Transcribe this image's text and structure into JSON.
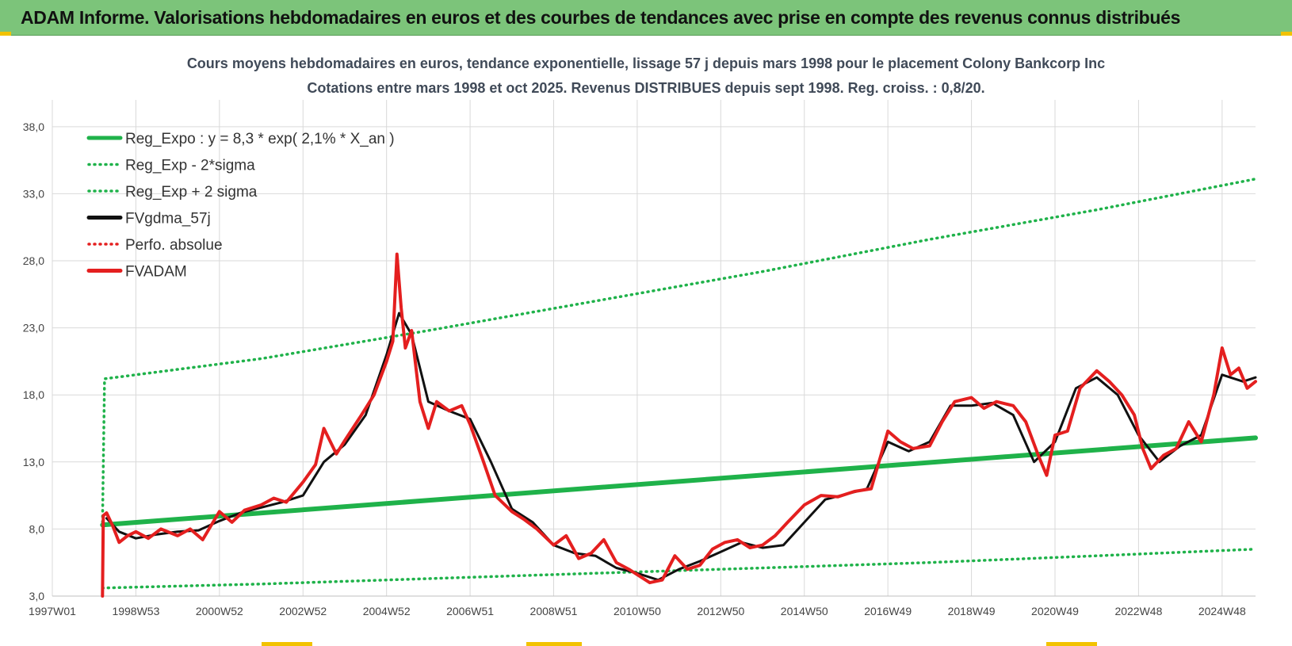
{
  "banner": {
    "title": "ADAM Informe. Valorisations hebdomadaires en euros et des courbes de tendances avec prise en compte des revenus connus distribués"
  },
  "chart_data": {
    "type": "line",
    "title": "Cours moyens hebdomadaires en euros, tendance exponentielle, lissage 57 j depuis mars 1998 pour le placement Colony Bankcorp Inc",
    "subtitle": "Cotations entre mars 1998 et oct 2025. Revenus DISTRIBUES depuis sept 1998. Reg. croiss. : 0,8/20.",
    "xlabel": "",
    "ylabel": "",
    "ylim": [
      3,
      40
    ],
    "yticks": [
      "3,0",
      "8,0",
      "13,0",
      "18,0",
      "23,0",
      "28,0",
      "33,0",
      "38,0"
    ],
    "ytick_values": [
      3,
      8,
      13,
      18,
      23,
      28,
      33,
      38
    ],
    "xlim": [
      1997.0,
      2025.8
    ],
    "xticks": [
      "1997W01",
      "1998W53",
      "2000W52",
      "2002W52",
      "2004W52",
      "2006W51",
      "2008W51",
      "2010W50",
      "2012W50",
      "2014W50",
      "2016W49",
      "2018W49",
      "2020W49",
      "2022W48",
      "2024W48"
    ],
    "xtick_values": [
      1997.0,
      1999.0,
      2001.0,
      2003.0,
      2005.0,
      2007.0,
      2009.0,
      2011.0,
      2013.0,
      2015.0,
      2017.0,
      2019.0,
      2021.0,
      2023.0,
      2025.0
    ],
    "legend_position": "top-left",
    "series": [
      {
        "name": "Reg_Expo : y = 8,3 * exp( 2,1% *  X_an )",
        "color": "#1fb24a",
        "style": "solid",
        "x": [
          1998.2,
          2025.8
        ],
        "y": [
          8.3,
          14.8
        ]
      },
      {
        "name": "Reg_Exp - 2*sigma",
        "color": "#1fb24a",
        "style": "dotted",
        "x": [
          1998.2,
          2002,
          2006,
          2010,
          2014,
          2018,
          2022,
          2025.8
        ],
        "y": [
          3.6,
          3.9,
          4.3,
          4.7,
          5.1,
          5.5,
          6.0,
          6.5
        ]
      },
      {
        "name": "Reg_Exp + 2 sigma",
        "color": "#1fb24a",
        "style": "dotted",
        "x": [
          1998.2,
          1998.25,
          2002,
          2006,
          2010,
          2014,
          2018,
          2022,
          2025.8
        ],
        "y": [
          8.5,
          19.2,
          20.7,
          22.8,
          25.0,
          27.2,
          29.6,
          31.8,
          34.1
        ]
      },
      {
        "name": "FVgdma_57j",
        "color": "#111111",
        "style": "solid",
        "x": [
          1998.3,
          1998.6,
          1999.0,
          1999.5,
          2000.0,
          2000.5,
          2001.0,
          2001.5,
          2002.0,
          2002.5,
          2003.0,
          2003.5,
          2004.0,
          2004.5,
          2005.0,
          2005.3,
          2005.6,
          2006.0,
          2006.5,
          2007.0,
          2007.5,
          2008.0,
          2008.5,
          2009.0,
          2009.5,
          2010.0,
          2010.5,
          2011.0,
          2011.5,
          2012.0,
          2012.5,
          2013.0,
          2013.5,
          2014.0,
          2014.5,
          2015.0,
          2015.5,
          2016.0,
          2016.5,
          2017.0,
          2017.5,
          2018.0,
          2018.5,
          2019.0,
          2019.5,
          2020.0,
          2020.5,
          2021.0,
          2021.5,
          2022.0,
          2022.5,
          2023.0,
          2023.5,
          2024.0,
          2024.5,
          2025.0,
          2025.5,
          2025.8
        ],
        "y": [
          8.8,
          7.8,
          7.3,
          7.6,
          7.8,
          7.9,
          8.6,
          9.2,
          9.6,
          10.0,
          10.5,
          13.0,
          14.3,
          16.5,
          21.0,
          24.1,
          22.5,
          17.5,
          16.8,
          16.2,
          13.0,
          9.5,
          8.5,
          6.8,
          6.2,
          6.0,
          5.1,
          4.7,
          4.2,
          5.0,
          5.6,
          6.3,
          7.0,
          6.6,
          6.8,
          8.5,
          10.2,
          10.6,
          11.0,
          14.5,
          13.8,
          14.5,
          17.2,
          17.2,
          17.4,
          16.5,
          13.0,
          14.5,
          18.5,
          19.3,
          18.0,
          15.0,
          13.0,
          14.2,
          15.0,
          19.5,
          19.0,
          19.3
        ]
      },
      {
        "name": "Perfo. absolue",
        "color": "#e41f1f",
        "style": "dotted",
        "x": [],
        "y": []
      },
      {
        "name": "FVADAM",
        "color": "#e41f1f",
        "style": "solid",
        "x": [
          1998.2,
          1998.22,
          1998.3,
          1998.45,
          1998.6,
          1998.8,
          1999.0,
          1999.3,
          1999.6,
          2000.0,
          2000.3,
          2000.6,
          2001.0,
          2001.3,
          2001.6,
          2002.0,
          2002.3,
          2002.6,
          2003.0,
          2003.3,
          2003.5,
          2003.8,
          2004.0,
          2004.4,
          2004.7,
          2005.0,
          2005.15,
          2005.25,
          2005.35,
          2005.45,
          2005.6,
          2005.8,
          2006.0,
          2006.2,
          2006.5,
          2006.8,
          2007.0,
          2007.3,
          2007.6,
          2008.0,
          2008.3,
          2008.6,
          2009.0,
          2009.3,
          2009.6,
          2009.9,
          2010.2,
          2010.5,
          2010.8,
          2011.0,
          2011.3,
          2011.6,
          2011.9,
          2012.2,
          2012.5,
          2012.8,
          2013.1,
          2013.4,
          2013.7,
          2014.0,
          2014.3,
          2014.6,
          2015.0,
          2015.4,
          2015.8,
          2016.2,
          2016.6,
          2017.0,
          2017.3,
          2017.6,
          2018.0,
          2018.3,
          2018.6,
          2019.0,
          2019.3,
          2019.6,
          2020.0,
          2020.3,
          2020.6,
          2020.8,
          2021.0,
          2021.3,
          2021.6,
          2022.0,
          2022.3,
          2022.6,
          2022.9,
          2023.1,
          2023.3,
          2023.6,
          2023.9,
          2024.2,
          2024.5,
          2024.8,
          2025.0,
          2025.2,
          2025.4,
          2025.6,
          2025.8
        ],
        "y": [
          3.0,
          9.0,
          9.2,
          8.2,
          7.0,
          7.5,
          7.8,
          7.3,
          8.0,
          7.5,
          8.0,
          7.2,
          9.3,
          8.5,
          9.4,
          9.8,
          10.3,
          10.0,
          11.5,
          12.8,
          15.5,
          13.6,
          14.6,
          16.5,
          18.0,
          20.5,
          22.0,
          28.5,
          24.5,
          21.5,
          22.8,
          17.5,
          15.5,
          17.5,
          16.8,
          17.2,
          15.8,
          13.2,
          10.5,
          9.3,
          8.7,
          8.0,
          6.8,
          7.5,
          5.8,
          6.2,
          7.2,
          5.5,
          5.0,
          4.6,
          4.0,
          4.2,
          6.0,
          5.0,
          5.3,
          6.5,
          7.0,
          7.2,
          6.6,
          6.8,
          7.5,
          8.5,
          9.8,
          10.5,
          10.4,
          10.8,
          11.0,
          15.3,
          14.5,
          14.0,
          14.2,
          16.0,
          17.5,
          17.8,
          17.0,
          17.5,
          17.2,
          16.0,
          13.5,
          12.0,
          15.0,
          15.3,
          18.5,
          19.8,
          19.0,
          18.0,
          16.5,
          14.0,
          12.5,
          13.5,
          14.0,
          16.0,
          14.5,
          18.0,
          21.5,
          19.5,
          20.0,
          18.5,
          19.0
        ]
      }
    ]
  }
}
